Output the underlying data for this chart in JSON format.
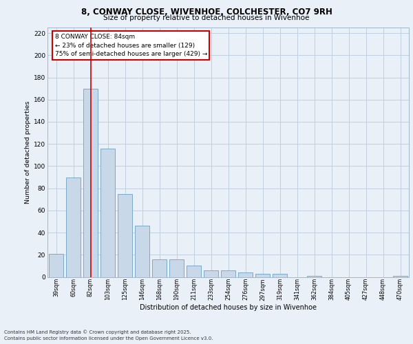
{
  "title_line1": "8, CONWAY CLOSE, WIVENHOE, COLCHESTER, CO7 9RH",
  "title_line2": "Size of property relative to detached houses in Wivenhoe",
  "xlabel": "Distribution of detached houses by size in Wivenhoe",
  "ylabel": "Number of detached properties",
  "categories": [
    "39sqm",
    "60sqm",
    "82sqm",
    "103sqm",
    "125sqm",
    "146sqm",
    "168sqm",
    "190sqm",
    "211sqm",
    "233sqm",
    "254sqm",
    "276sqm",
    "297sqm",
    "319sqm",
    "341sqm",
    "362sqm",
    "384sqm",
    "405sqm",
    "427sqm",
    "448sqm",
    "470sqm"
  ],
  "values": [
    21,
    90,
    170,
    116,
    75,
    46,
    16,
    16,
    10,
    6,
    6,
    4,
    3,
    3,
    0,
    1,
    0,
    0,
    0,
    0,
    1
  ],
  "bar_color": "#c8d8e8",
  "bar_edge_color": "#7aaac8",
  "grid_color": "#c0d0e0",
  "vline_x": 2,
  "vline_color": "#cc0000",
  "annotation_text": "8 CONWAY CLOSE: 84sqm\n← 23% of detached houses are smaller (129)\n75% of semi-detached houses are larger (429) →",
  "annotation_box_color": "#ffffff",
  "annotation_box_edge_color": "#cc0000",
  "ylim": [
    0,
    225
  ],
  "yticks": [
    0,
    20,
    40,
    60,
    80,
    100,
    120,
    140,
    160,
    180,
    200,
    220
  ],
  "footer_line1": "Contains HM Land Registry data © Crown copyright and database right 2025.",
  "footer_line2": "Contains public sector information licensed under the Open Government Licence v3.0.",
  "background_color": "#eaf0f8",
  "plot_bg_color": "#eaf0f8"
}
